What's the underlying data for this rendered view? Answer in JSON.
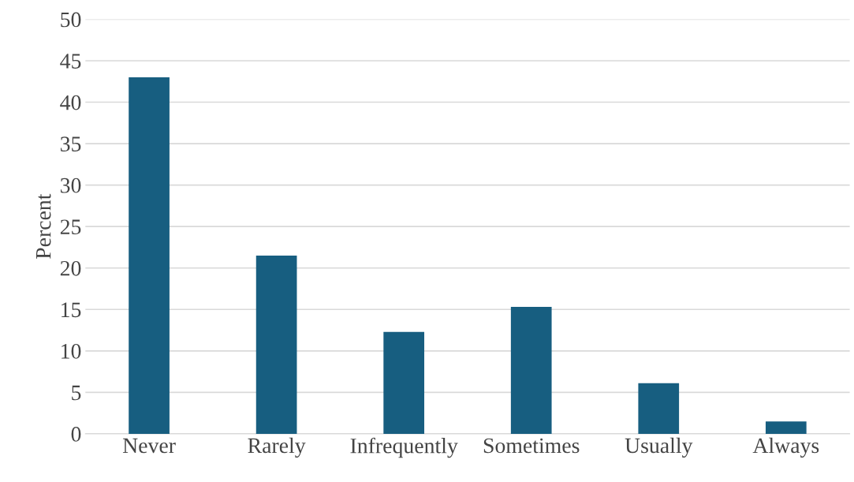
{
  "chart_data": {
    "type": "bar",
    "ylabel": "Percent",
    "categories": [
      "Never",
      "Rarely",
      "Infrequently",
      "Sometimes",
      "Usually",
      "Always"
    ],
    "values": [
      43.0,
      21.5,
      12.3,
      15.3,
      6.1,
      1.5
    ],
    "color": "#175e80",
    "ylim": [
      0,
      50
    ],
    "yticks": [
      0,
      5,
      10,
      15,
      20,
      25,
      30,
      35,
      40,
      45,
      50
    ],
    "grid": "y",
    "legend": false
  }
}
